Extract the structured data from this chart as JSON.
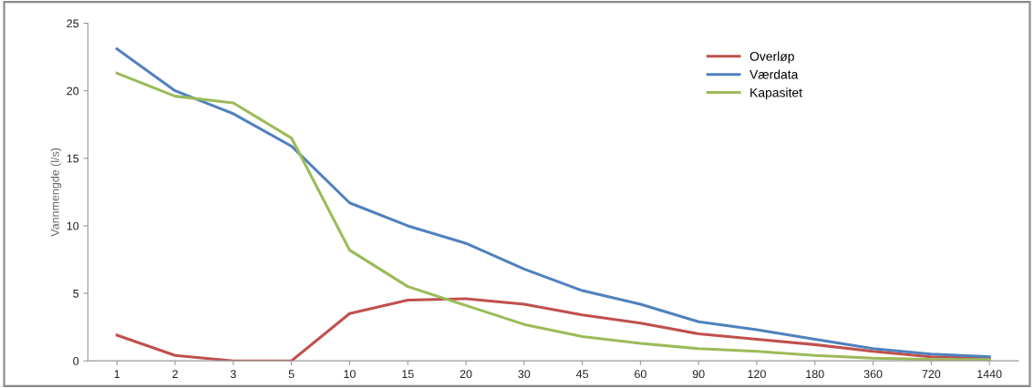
{
  "chart_data": {
    "type": "line",
    "ylabel": "Vannmengde (l/s)",
    "categories": [
      "1",
      "2",
      "3",
      "5",
      "10",
      "15",
      "20",
      "30",
      "45",
      "60",
      "90",
      "120",
      "180",
      "360",
      "720",
      "1440"
    ],
    "series": [
      {
        "name": "Overløp",
        "color": "#c0504d",
        "values": [
          1.9,
          0.4,
          0.0,
          0.0,
          3.5,
          4.5,
          4.6,
          4.2,
          3.4,
          2.8,
          2.0,
          1.6,
          1.2,
          0.7,
          0.3,
          0.2
        ]
      },
      {
        "name": "Værdata",
        "color": "#4f81bd",
        "values": [
          23.1,
          20.0,
          18.3,
          15.9,
          11.7,
          10.0,
          8.7,
          6.8,
          5.2,
          4.2,
          2.9,
          2.3,
          1.6,
          0.9,
          0.5,
          0.3
        ]
      },
      {
        "name": "Kapasitet",
        "color": "#9bbb59",
        "values": [
          21.3,
          19.6,
          19.1,
          16.5,
          8.2,
          5.5,
          4.1,
          2.7,
          1.8,
          1.3,
          0.9,
          0.7,
          0.4,
          0.2,
          0.1,
          0.1
        ]
      }
    ],
    "ylim": [
      0,
      25
    ],
    "yticks": [
      0,
      5,
      10,
      15,
      20,
      25
    ],
    "grid": false,
    "legend": "top right",
    "marker": "none",
    "line_style": "solid"
  }
}
